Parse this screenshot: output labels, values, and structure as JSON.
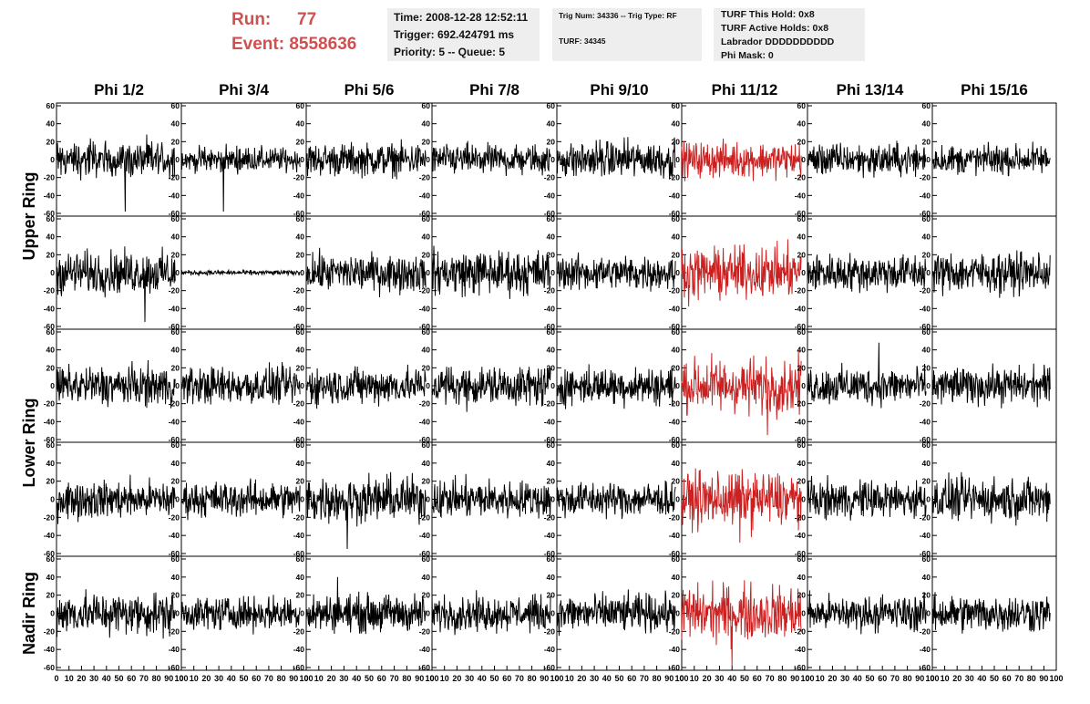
{
  "header": {
    "run_label": "Run:",
    "run_value": "77",
    "event_label": "Event:",
    "event_value": "8558636",
    "time_line": "Time: 2008-12-28 12:52:11",
    "trigger_line": "Trigger: 692.424791 ms",
    "priority_line": "Priority: 5 -- Queue: 5",
    "trig_line": "Trig Num: 34336 -- Trig Type: RF",
    "turf_line": "TURF: 34345",
    "turf_hold_line": "TURF This Hold: 0x8",
    "turf_active_line": "TURF Active Holds: 0x8",
    "labrador_line": "Labrador DDDDDDDDDD",
    "phi_mask_line": "Phi Mask: 0"
  },
  "colors": {
    "accent": "#d05050",
    "trace": "#000000",
    "highlight_trace": "#cc2020"
  },
  "chart_data": {
    "type": "line",
    "columns": [
      "Phi 1/2",
      "Phi 3/4",
      "Phi 5/6",
      "Phi 7/8",
      "Phi 9/10",
      "Phi 11/12",
      "Phi 13/14",
      "Phi 15/16"
    ],
    "rows": [
      "Upper Ring",
      "Lower Ring",
      "Nadir Ring"
    ],
    "highlighted_column": "Phi 11/12",
    "ylim": [
      -60,
      60
    ],
    "xlim": [
      0,
      100
    ],
    "y_ticks": [
      -60,
      -40,
      -20,
      0,
      20,
      40,
      60
    ],
    "x_ticks": [
      0,
      10,
      20,
      30,
      40,
      50,
      60,
      70,
      80,
      90,
      100
    ],
    "panels": [
      [
        {
          "amp": 15,
          "spike": -58
        },
        {
          "amp": 10,
          "spike": -58
        },
        {
          "amp": 13,
          "spike": 0
        },
        {
          "amp": 12,
          "spike": 0
        },
        {
          "amp": 15,
          "spike": 0
        },
        {
          "amp": 14,
          "spike": 0
        },
        {
          "amp": 13,
          "spike": 0
        },
        {
          "amp": 12,
          "spike": 0
        }
      ],
      [
        {
          "amp": 17,
          "spike": -55
        },
        {
          "amp": 2,
          "spike": 0
        },
        {
          "amp": 15,
          "spike": 0
        },
        {
          "amp": 18,
          "spike": 0
        },
        {
          "amp": 14,
          "spike": 0
        },
        {
          "amp": 20,
          "spike": 0
        },
        {
          "amp": 15,
          "spike": 0
        },
        {
          "amp": 16,
          "spike": 0
        }
      ],
      [
        {
          "amp": 16,
          "spike": 0
        },
        {
          "amp": 15,
          "spike": 0
        },
        {
          "amp": 15,
          "spike": 0
        },
        {
          "amp": 16,
          "spike": 0
        },
        {
          "amp": 15,
          "spike": 0
        },
        {
          "amp": 22,
          "spike": -55
        },
        {
          "amp": 15,
          "spike": 48
        },
        {
          "amp": 15,
          "spike": 0
        }
      ],
      [
        {
          "amp": 15,
          "spike": 0
        },
        {
          "amp": 14,
          "spike": 0
        },
        {
          "amp": 18,
          "spike": -55
        },
        {
          "amp": 15,
          "spike": 0
        },
        {
          "amp": 14,
          "spike": 0
        },
        {
          "amp": 22,
          "spike": -48
        },
        {
          "amp": 15,
          "spike": 0
        },
        {
          "amp": 17,
          "spike": 0
        }
      ],
      [
        {
          "amp": 17,
          "spike": 0
        },
        {
          "amp": 13,
          "spike": 0
        },
        {
          "amp": 15,
          "spike": 40
        },
        {
          "amp": 14,
          "spike": 0
        },
        {
          "amp": 15,
          "spike": 0
        },
        {
          "amp": 22,
          "spike": -58
        },
        {
          "amp": 14,
          "spike": 0
        },
        {
          "amp": 15,
          "spike": 0
        }
      ]
    ]
  }
}
